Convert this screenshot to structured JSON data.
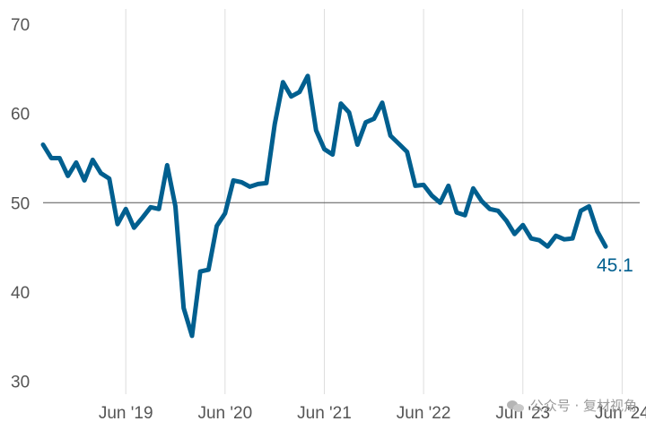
{
  "chart_data": {
    "type": "line",
    "title": "",
    "xlabel": "",
    "ylabel": "",
    "ylim": [
      27,
      72
    ],
    "yticks": [
      30,
      40,
      50,
      60,
      70
    ],
    "xticks": [
      "Jun '19",
      "Jun '20",
      "Jun '21",
      "Jun '22",
      "Jun '23",
      "Jun '24"
    ],
    "x_start": "Aug '18",
    "x_end": "Jun '24",
    "reference_line": 50,
    "grid": "vertical",
    "series": [
      {
        "color": "#005f8f",
        "values": [
          56.5,
          55.0,
          55.0,
          53.0,
          54.5,
          52.5,
          54.8,
          53.3,
          52.7,
          47.6,
          49.3,
          47.2,
          48.3,
          49.5,
          49.3,
          54.2,
          49.6,
          38.2,
          35.1,
          42.3,
          42.5,
          47.4,
          48.8,
          52.5,
          52.3,
          51.8,
          52.1,
          52.2,
          58.8,
          63.5,
          61.9,
          62.4,
          64.2,
          58.1,
          56.0,
          55.4,
          61.1,
          60.1,
          56.5,
          59.0,
          59.4,
          61.2,
          57.5,
          56.6,
          55.7,
          51.9,
          52.0,
          50.8,
          50.0,
          51.9,
          48.9,
          48.6,
          51.6,
          50.2,
          49.3,
          49.1,
          48.0,
          46.5,
          47.5,
          46.0,
          45.8,
          45.1,
          46.3,
          45.9,
          46.0,
          49.1,
          49.6,
          46.8,
          45.1
        ]
      }
    ],
    "end_label": "45.1"
  },
  "watermark": {
    "text": "公众号 · 复材视角",
    "icon": "wechat-icon"
  }
}
